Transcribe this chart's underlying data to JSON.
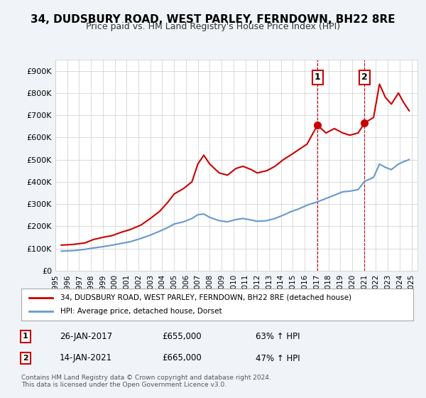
{
  "title": "34, DUDSBURY ROAD, WEST PARLEY, FERNDOWN, BH22 8RE",
  "subtitle": "Price paid vs. HM Land Registry's House Price Index (HPI)",
  "ylabel": "",
  "background_color": "#f0f4f8",
  "plot_bg_color": "#ffffff",
  "legend_label_red": "34, DUDSBURY ROAD, WEST PARLEY, FERNDOWN, BH22 8RE (detached house)",
  "legend_label_blue": "HPI: Average price, detached house, Dorset",
  "annotation1_label": "1",
  "annotation1_date": "26-JAN-2017",
  "annotation1_price": "£655,000",
  "annotation1_hpi": "63% ↑ HPI",
  "annotation1_year": 2017.07,
  "annotation1_value": 655000,
  "annotation2_label": "2",
  "annotation2_date": "14-JAN-2021",
  "annotation2_price": "£665,000",
  "annotation2_hpi": "47% ↑ HPI",
  "annotation2_year": 2021.04,
  "annotation2_value": 665000,
  "footer": "Contains HM Land Registry data © Crown copyright and database right 2024.\nThis data is licensed under the Open Government Licence v3.0.",
  "red_line_color": "#cc0000",
  "blue_line_color": "#6699cc",
  "marker_color": "#cc0000",
  "ylim": [
    0,
    950000
  ],
  "yticks": [
    0,
    100000,
    200000,
    300000,
    400000,
    500000,
    600000,
    700000,
    800000,
    900000
  ],
  "ytick_labels": [
    "£0",
    "£100K",
    "£200K",
    "£300K",
    "£400K",
    "£500K",
    "£600K",
    "£700K",
    "£800K",
    "£900K"
  ],
  "red_x": [
    1995.5,
    1996.5,
    1997.5,
    1998.2,
    1999.0,
    1999.8,
    2000.5,
    2001.3,
    2002.2,
    2003.0,
    2003.8,
    2004.5,
    2005.0,
    2005.8,
    2006.5,
    2007.0,
    2007.5,
    2008.0,
    2008.8,
    2009.5,
    2010.2,
    2010.8,
    2011.5,
    2012.0,
    2012.8,
    2013.5,
    2014.2,
    2014.8,
    2015.5,
    2016.2,
    2017.07,
    2017.8,
    2018.5,
    2019.2,
    2019.8,
    2020.5,
    2021.04,
    2021.8,
    2022.3,
    2022.8,
    2023.3,
    2023.9,
    2024.3,
    2024.8
  ],
  "red_y": [
    115000,
    118000,
    125000,
    140000,
    150000,
    158000,
    172000,
    185000,
    205000,
    235000,
    268000,
    310000,
    345000,
    370000,
    400000,
    480000,
    520000,
    480000,
    440000,
    430000,
    460000,
    470000,
    455000,
    440000,
    450000,
    470000,
    500000,
    520000,
    545000,
    570000,
    655000,
    620000,
    640000,
    620000,
    610000,
    620000,
    665000,
    690000,
    840000,
    780000,
    750000,
    800000,
    760000,
    720000
  ],
  "blue_x": [
    1995.5,
    1996.5,
    1997.5,
    1998.2,
    1999.0,
    1999.8,
    2000.5,
    2001.3,
    2002.2,
    2003.0,
    2003.8,
    2004.5,
    2005.0,
    2005.8,
    2006.5,
    2007.0,
    2007.5,
    2008.0,
    2008.8,
    2009.5,
    2010.2,
    2010.8,
    2011.5,
    2012.0,
    2012.8,
    2013.5,
    2014.2,
    2014.8,
    2015.5,
    2016.2,
    2017.07,
    2017.8,
    2018.5,
    2019.2,
    2019.8,
    2020.5,
    2021.04,
    2021.8,
    2022.3,
    2022.8,
    2023.3,
    2023.9,
    2024.3,
    2024.8
  ],
  "blue_y": [
    88000,
    90000,
    96000,
    102000,
    108000,
    115000,
    122000,
    130000,
    145000,
    160000,
    178000,
    195000,
    210000,
    220000,
    235000,
    252000,
    255000,
    240000,
    225000,
    220000,
    230000,
    235000,
    228000,
    222000,
    225000,
    235000,
    250000,
    265000,
    278000,
    295000,
    310000,
    325000,
    340000,
    355000,
    358000,
    365000,
    402000,
    420000,
    480000,
    465000,
    455000,
    480000,
    490000,
    500000
  ]
}
